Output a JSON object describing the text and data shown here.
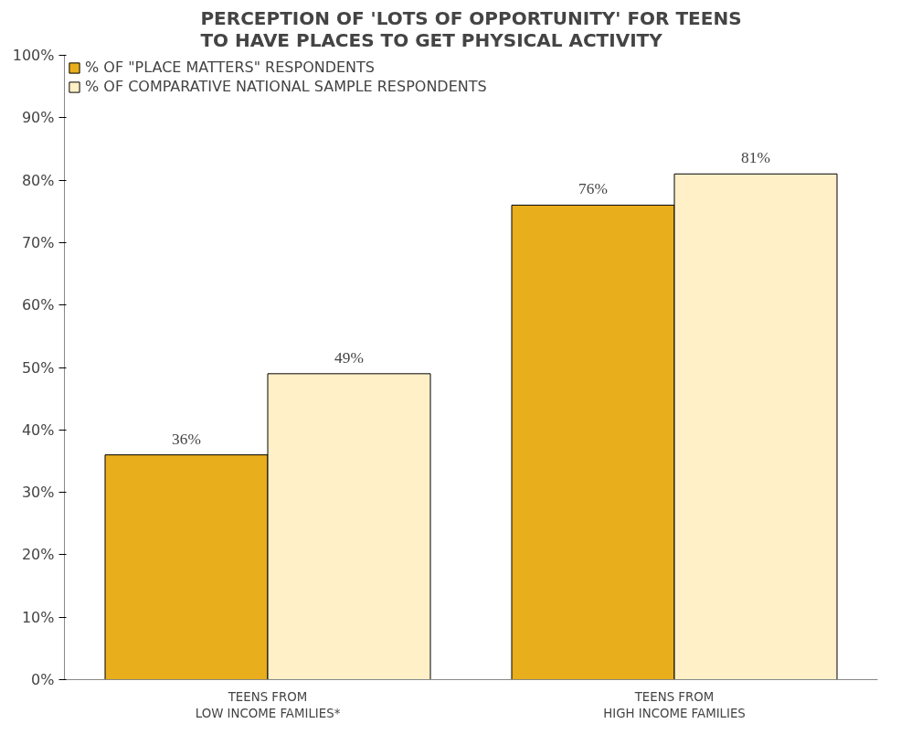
{
  "chart_data": {
    "type": "bar",
    "title": "PERCEPTION OF 'LOTS OF OPPORTUNITY' FOR TEENS\nTO HAVE PLACES TO GET PHYSICAL ACTIVITY",
    "categories": [
      "TEENS FROM\nLOW INCOME FAMILIES*",
      "TEENS FROM\nHIGH INCOME FAMILIES"
    ],
    "series": [
      {
        "name": "% OF \"PLACE MATTERS\" RESPONDENTS",
        "color": "#e8ae1c",
        "values": [
          36,
          76
        ],
        "value_labels": [
          "36%",
          "76%"
        ]
      },
      {
        "name": "% OF COMPARATIVE NATIONAL SAMPLE RESPONDENTS",
        "color": "#fff0c8",
        "values": [
          49,
          81
        ],
        "value_labels": [
          "49%",
          "81%"
        ]
      }
    ],
    "ylim": [
      0,
      100
    ],
    "yticks": [
      {
        "value": 0,
        "label": "0%"
      },
      {
        "value": 10,
        "label": "10%"
      },
      {
        "value": 20,
        "label": "20%"
      },
      {
        "value": 30,
        "label": "30%"
      },
      {
        "value": 40,
        "label": "40%"
      },
      {
        "value": 50,
        "label": "50%"
      },
      {
        "value": 60,
        "label": "60%"
      },
      {
        "value": 70,
        "label": "70%"
      },
      {
        "value": 80,
        "label": "80%"
      },
      {
        "value": 90,
        "label": "90%"
      },
      {
        "value": 100,
        "label": "100%"
      }
    ],
    "legend": "top",
    "grid": false
  }
}
